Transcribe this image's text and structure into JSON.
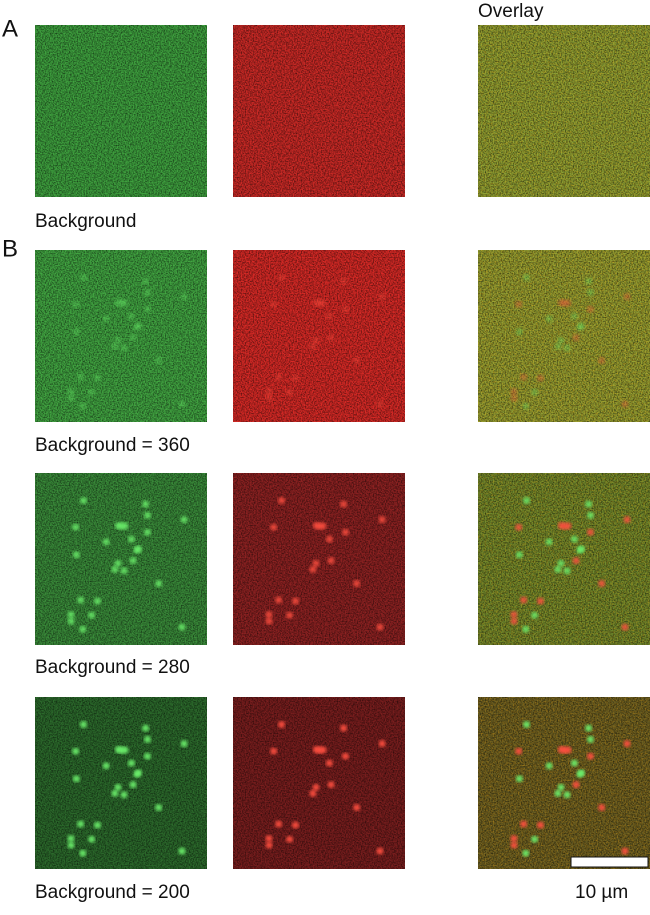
{
  "panel_labels": {
    "a": "A",
    "b": "B"
  },
  "column_header": "Overlay",
  "row_captions": [
    "Background",
    "Background = 360",
    "Background = 280",
    "Background = 200"
  ],
  "scale_bar_label": "10 µm"
}
